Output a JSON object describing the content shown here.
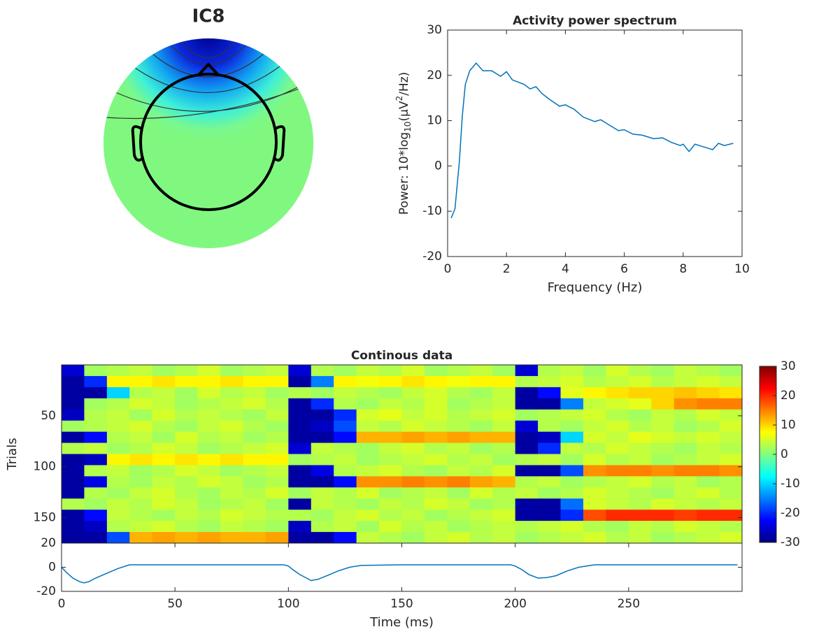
{
  "chart_data": [
    {
      "type": "topomap",
      "title": "IC8"
    },
    {
      "type": "line",
      "title": "Activity power spectrum",
      "xlabel": "Frequency (Hz)",
      "ylabel_parts": [
        "Power: 10*log",
        "10",
        "(μV",
        "2",
        "/Hz)"
      ],
      "color": "#0072bd",
      "x": [
        0.12,
        0.25,
        0.4,
        0.5,
        0.6,
        0.75,
        0.97,
        1.2,
        1.5,
        1.8,
        2.0,
        2.2,
        2.6,
        2.8,
        3.0,
        3.2,
        3.5,
        3.8,
        4.0,
        4.3,
        4.6,
        5.0,
        5.2,
        5.5,
        5.8,
        6.0,
        6.3,
        6.6,
        7.0,
        7.3,
        7.6,
        7.9,
        8.0,
        8.2,
        8.4,
        8.7,
        9.0,
        9.2,
        9.4,
        9.7
      ],
      "values": [
        -11.5,
        -9.5,
        1,
        11,
        18,
        21,
        22.7,
        21,
        21,
        19.8,
        20.8,
        19,
        18,
        17,
        17.5,
        16,
        14.5,
        13.2,
        13.5,
        12.5,
        10.8,
        9.8,
        10.2,
        9,
        7.8,
        8,
        7,
        6.8,
        6,
        6.2,
        5.2,
        4.5,
        4.8,
        3.2,
        4.8,
        4.2,
        3.6,
        5,
        4.5,
        5
      ],
      "xlim": [
        0,
        10
      ],
      "xticks": [
        0,
        2,
        4,
        6,
        8,
        10
      ],
      "ylim": [
        -20,
        30
      ],
      "yticks": [
        -20,
        -10,
        0,
        10,
        20,
        30
      ]
    },
    {
      "type": "heatmap",
      "title": "Continous data",
      "ylabel": "Trials",
      "xlim": [
        0,
        300
      ],
      "ylim": [
        0,
        175
      ],
      "yreverse": true,
      "yticks": [
        50,
        100,
        150
      ],
      "colorbar": {
        "lim": [
          -30,
          30
        ],
        "ticks": [
          -30,
          -20,
          -10,
          0,
          10,
          20,
          30
        ]
      },
      "z": [
        [
          -25,
          2,
          3,
          4,
          2,
          3,
          5,
          2,
          3,
          4,
          -25,
          3,
          2,
          4,
          3,
          5,
          2,
          3,
          4,
          2,
          -25,
          3,
          4,
          2,
          5,
          3,
          2,
          4,
          3,
          2
        ],
        [
          -28,
          -20,
          8,
          8,
          9,
          8,
          8,
          9,
          8,
          8,
          -28,
          -15,
          8,
          7,
          8,
          9,
          8,
          7,
          8,
          8,
          3,
          4,
          5,
          3,
          4,
          5,
          3,
          4,
          5,
          4
        ],
        [
          -28,
          -28,
          -10,
          3,
          4,
          2,
          5,
          3,
          4,
          2,
          3,
          2,
          4,
          3,
          2,
          4,
          5,
          3,
          2,
          4,
          -28,
          -22,
          6,
          8,
          9,
          10,
          10,
          11,
          10,
          9
        ],
        [
          -28,
          2,
          3,
          5,
          4,
          2,
          3,
          4,
          5,
          3,
          -28,
          -20,
          3,
          2,
          4,
          3,
          5,
          2,
          3,
          4,
          -28,
          -28,
          -15,
          4,
          5,
          6,
          10,
          14,
          15,
          15
        ],
        [
          -26,
          3,
          4,
          2,
          5,
          3,
          4,
          3,
          2,
          4,
          -28,
          -28,
          -20,
          5,
          6,
          4,
          5,
          3,
          4,
          5,
          2,
          3,
          4,
          5,
          3,
          2,
          4,
          3,
          5,
          4
        ],
        [
          2,
          3,
          4,
          5,
          3,
          2,
          4,
          5,
          3,
          2,
          -28,
          -26,
          -18,
          4,
          3,
          5,
          4,
          3,
          2,
          4,
          -25,
          3,
          2,
          4,
          5,
          3,
          4,
          2,
          3,
          5
        ],
        [
          -28,
          -22,
          3,
          4,
          2,
          5,
          3,
          4,
          2,
          3,
          -28,
          -28,
          -22,
          12,
          12,
          13,
          12,
          13,
          12,
          12,
          -28,
          -26,
          -10,
          5,
          4,
          6,
          5,
          4,
          5,
          4
        ],
        [
          3,
          4,
          2,
          3,
          5,
          4,
          2,
          3,
          4,
          5,
          -25,
          4,
          3,
          2,
          4,
          5,
          3,
          4,
          2,
          3,
          -28,
          -20,
          4,
          3,
          5,
          4,
          3,
          2,
          4,
          3
        ],
        [
          -28,
          -26,
          8,
          9,
          8,
          9,
          8,
          9,
          8,
          8,
          2,
          3,
          4,
          2,
          3,
          4,
          5,
          3,
          4,
          2,
          3,
          4,
          2,
          5,
          3,
          4,
          2,
          3,
          4,
          5
        ],
        [
          -28,
          3,
          4,
          2,
          3,
          5,
          4,
          2,
          3,
          4,
          -28,
          -24,
          3,
          4,
          5,
          3,
          2,
          4,
          3,
          5,
          -28,
          -28,
          -18,
          14,
          15,
          15,
          14,
          15,
          15,
          14
        ],
        [
          -28,
          -24,
          3,
          2,
          4,
          3,
          5,
          4,
          2,
          3,
          -28,
          -28,
          -22,
          14,
          14,
          15,
          14,
          15,
          13,
          12,
          3,
          4,
          2,
          3,
          4,
          5,
          3,
          4,
          2,
          3
        ],
        [
          -28,
          3,
          2,
          4,
          5,
          3,
          2,
          4,
          3,
          5,
          2,
          4,
          3,
          5,
          2,
          3,
          4,
          2,
          5,
          3,
          4,
          2,
          3,
          5,
          4,
          3,
          2,
          4,
          5,
          3
        ],
        [
          3,
          2,
          4,
          3,
          5,
          4,
          2,
          3,
          4,
          2,
          -28,
          4,
          3,
          2,
          4,
          3,
          5,
          4,
          2,
          3,
          -28,
          -28,
          -16,
          5,
          4,
          3,
          5,
          4,
          3,
          4
        ],
        [
          -28,
          -22,
          4,
          3,
          2,
          4,
          3,
          5,
          4,
          3,
          3,
          2,
          4,
          5,
          3,
          4,
          2,
          3,
          4,
          5,
          -28,
          -28,
          -20,
          18,
          20,
          20,
          20,
          19,
          20,
          20
        ],
        [
          -28,
          -26,
          3,
          4,
          5,
          3,
          2,
          4,
          3,
          2,
          -26,
          3,
          4,
          2,
          5,
          3,
          4,
          2,
          3,
          4,
          3,
          4,
          5,
          3,
          2,
          4,
          3,
          5,
          4,
          3
        ],
        [
          -28,
          -28,
          -18,
          12,
          13,
          12,
          13,
          12,
          12,
          13,
          -28,
          -28,
          -22,
          4,
          3,
          2,
          4,
          5,
          3,
          4,
          2,
          3,
          4,
          5,
          3,
          4,
          2,
          3,
          4,
          5
        ]
      ]
    },
    {
      "type": "line",
      "xlabel": "Time (ms)",
      "color": "#0072bd",
      "x": [
        0,
        2,
        5,
        8,
        10,
        12,
        15,
        20,
        25,
        30,
        50,
        70,
        90,
        98,
        100,
        102,
        105,
        108,
        110,
        113,
        117,
        122,
        127,
        132,
        150,
        170,
        190,
        198,
        200,
        203,
        206,
        210,
        214,
        218,
        223,
        228,
        235,
        260,
        280,
        298
      ],
      "values": [
        0,
        -4,
        -9,
        -12,
        -13,
        -12,
        -9,
        -5,
        -1,
        2,
        2,
        2,
        2,
        2,
        1,
        -2,
        -6,
        -9,
        -11,
        -10,
        -7,
        -3,
        0,
        1.5,
        2,
        2,
        2,
        2,
        1,
        -2,
        -6,
        -9,
        -8.5,
        -7,
        -3,
        0,
        2,
        2,
        2,
        2
      ],
      "xlim": [
        0,
        300
      ],
      "xticks": [
        0,
        50,
        100,
        150,
        200,
        250
      ],
      "ylim": [
        -20,
        20
      ],
      "yticks": [
        -20,
        0,
        20
      ]
    }
  ]
}
